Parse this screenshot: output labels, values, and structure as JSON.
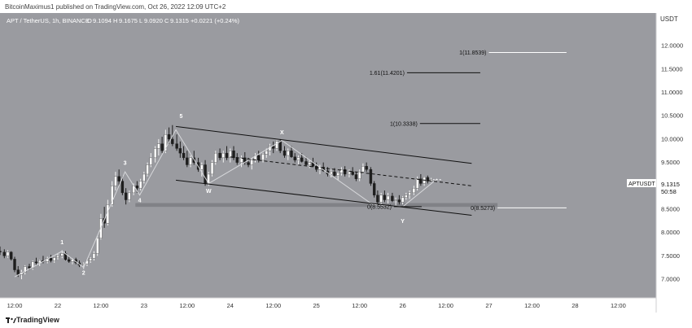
{
  "header": {
    "published_by": "BitcoinMaximus1 published on TradingView.com, Oct 26, 2022 12:09 UTC+2"
  },
  "footer": {
    "brand": "TradingView"
  },
  "colors": {
    "background": "#9a9ba0",
    "axis_bg": "#ffffff",
    "up": "#ffffff",
    "down": "#1e1e1e",
    "line": "#111111",
    "zone": "#7d7e83"
  },
  "chart_data": {
    "type": "candlestick",
    "symbol_line": {
      "symbol": "APT / TetherUS, 1h, BINANCE",
      "o_label": "O",
      "o": "9.1094",
      "h_label": "H",
      "h": "9.1675",
      "l_label": "L",
      "l": "9.0920",
      "c_label": "C",
      "c": "9.1315",
      "change": "+0.0221 (+0.24%)"
    },
    "y_axis": {
      "unit": "USDT",
      "ticks": [
        "7.0000",
        "7.5000",
        "8.0000",
        "8.5000",
        "9.0000",
        "9.5000",
        "10.0000",
        "10.5000",
        "11.0000",
        "11.5000",
        "12.0000"
      ],
      "range": [
        6.6,
        12.7
      ]
    },
    "x_axis": {
      "range_days": [
        21.33,
        28.94
      ],
      "ticks": [
        {
          "t": 21.5,
          "label": "12:00"
        },
        {
          "t": 22.0,
          "label": "22"
        },
        {
          "t": 22.5,
          "label": "12:00"
        },
        {
          "t": 23.0,
          "label": "23"
        },
        {
          "t": 23.5,
          "label": "12:00"
        },
        {
          "t": 24.0,
          "label": "24"
        },
        {
          "t": 24.5,
          "label": "12:00"
        },
        {
          "t": 25.0,
          "label": "25"
        },
        {
          "t": 25.5,
          "label": "12:00"
        },
        {
          "t": 26.0,
          "label": "26"
        },
        {
          "t": 26.5,
          "label": "12:00"
        },
        {
          "t": 27.0,
          "label": "27"
        },
        {
          "t": 27.5,
          "label": "12:00"
        },
        {
          "t": 28.0,
          "label": "28"
        },
        {
          "t": 28.5,
          "label": "12:00"
        }
      ]
    },
    "price_tag": {
      "symbol": "APTUSDT",
      "price": "9.1315",
      "countdown": "50:58",
      "value": 9.1315
    },
    "path_points": [
      [
        21.5,
        7.05
      ],
      [
        22.05,
        7.6
      ],
      [
        22.3,
        7.25
      ],
      [
        22.78,
        9.3
      ],
      [
        22.95,
        8.8
      ],
      [
        23.37,
        10.2
      ],
      [
        23.75,
        9.05
      ],
      [
        24.6,
        9.97
      ],
      [
        25.65,
        8.6
      ],
      [
        26.0,
        8.55
      ],
      [
        26.4,
        9.15
      ]
    ],
    "wave_labels": [
      {
        "text": "1",
        "t": 22.05,
        "p": 7.75
      },
      {
        "text": "2",
        "t": 22.3,
        "p": 7.1
      },
      {
        "text": "3",
        "t": 22.78,
        "p": 9.45
      },
      {
        "text": "4",
        "t": 22.95,
        "p": 8.65
      },
      {
        "text": "5",
        "t": 23.43,
        "p": 10.45
      },
      {
        "text": "W",
        "t": 23.75,
        "p": 8.85
      },
      {
        "text": "X",
        "t": 24.6,
        "p": 10.1
      },
      {
        "text": "Y",
        "t": 26.0,
        "p": 8.2
      }
    ],
    "channel_lines": [
      {
        "from": [
          23.37,
          10.27
        ],
        "to": [
          26.8,
          9.48
        ]
      },
      {
        "from": [
          23.37,
          9.12
        ],
        "to": [
          26.8,
          8.37
        ]
      }
    ],
    "dashed_midline": {
      "from": [
        24.0,
        9.62
      ],
      "to": [
        26.8,
        9.0
      ]
    },
    "support_zone": {
      "t_start": 22.9,
      "t_end": 27.1,
      "p_low": 8.55,
      "p_high": 8.63
    },
    "fib_levels": [
      {
        "label": "1(11.8539)",
        "value": 11.8539,
        "t_start": 27.0,
        "t_end": 27.9
      },
      {
        "label": "1.61(11.4201)",
        "value": 11.4201,
        "t_start": 26.05,
        "t_end": 26.9
      },
      {
        "label": "1(10.3338)",
        "value": 10.3338,
        "t_start": 26.2,
        "t_end": 26.9
      },
      {
        "label": "0(8.5532)",
        "value": 8.5532,
        "t_start": 25.9,
        "t_end": 26.22
      },
      {
        "label": "0(8.5273)",
        "value": 8.5273,
        "t_start": 27.1,
        "t_end": 27.9
      }
    ],
    "candles": [
      [
        21.33,
        7.6,
        7.7,
        7.52,
        7.58
      ],
      [
        21.38,
        7.58,
        7.64,
        7.45,
        7.5
      ],
      [
        21.42,
        7.5,
        7.62,
        7.46,
        7.58
      ],
      [
        21.46,
        7.58,
        7.6,
        7.4,
        7.43
      ],
      [
        21.5,
        7.43,
        7.48,
        7.15,
        7.2
      ],
      [
        21.54,
        7.2,
        7.28,
        7.05,
        7.1
      ],
      [
        21.58,
        7.1,
        7.2,
        7.0,
        7.15
      ],
      [
        21.62,
        7.15,
        7.3,
        7.1,
        7.27
      ],
      [
        21.67,
        7.27,
        7.33,
        7.2,
        7.24
      ],
      [
        21.71,
        7.24,
        7.4,
        7.2,
        7.37
      ],
      [
        21.75,
        7.37,
        7.46,
        7.3,
        7.35
      ],
      [
        21.79,
        7.35,
        7.42,
        7.28,
        7.4
      ],
      [
        21.83,
        7.4,
        7.5,
        7.34,
        7.38
      ],
      [
        21.88,
        7.38,
        7.48,
        7.34,
        7.45
      ],
      [
        21.92,
        7.45,
        7.52,
        7.36,
        7.4
      ],
      [
        21.96,
        7.4,
        7.48,
        7.35,
        7.46
      ],
      [
        22.0,
        7.46,
        7.55,
        7.42,
        7.5
      ],
      [
        22.05,
        7.5,
        7.62,
        7.45,
        7.55
      ],
      [
        22.09,
        7.55,
        7.6,
        7.4,
        7.42
      ],
      [
        22.13,
        7.42,
        7.48,
        7.35,
        7.38
      ],
      [
        22.17,
        7.38,
        7.45,
        7.32,
        7.42
      ],
      [
        22.21,
        7.42,
        7.46,
        7.32,
        7.35
      ],
      [
        22.25,
        7.35,
        7.4,
        7.26,
        7.3
      ],
      [
        22.3,
        7.3,
        7.36,
        7.22,
        7.33
      ],
      [
        22.34,
        7.33,
        7.42,
        7.28,
        7.4
      ],
      [
        22.38,
        7.4,
        7.47,
        7.35,
        7.45
      ],
      [
        22.42,
        7.45,
        7.6,
        7.4,
        7.55
      ],
      [
        22.46,
        7.55,
        7.92,
        7.5,
        7.88
      ],
      [
        22.5,
        7.88,
        8.4,
        7.85,
        8.3
      ],
      [
        22.54,
        8.3,
        8.55,
        8.1,
        8.2
      ],
      [
        22.58,
        8.2,
        8.7,
        8.15,
        8.6
      ],
      [
        22.63,
        8.6,
        9.1,
        8.55,
        9.0
      ],
      [
        22.67,
        9.0,
        9.3,
        8.9,
        9.2
      ],
      [
        22.71,
        9.2,
        9.35,
        9.0,
        9.1
      ],
      [
        22.75,
        9.1,
        9.2,
        8.8,
        8.85
      ],
      [
        22.79,
        8.85,
        8.95,
        8.6,
        8.7
      ],
      [
        22.83,
        8.7,
        8.9,
        8.65,
        8.85
      ],
      [
        22.88,
        8.85,
        9.05,
        8.8,
        9.0
      ],
      [
        22.92,
        9.0,
        9.1,
        8.85,
        8.95
      ],
      [
        22.96,
        8.95,
        9.15,
        8.9,
        9.1
      ],
      [
        23.0,
        9.1,
        9.3,
        9.05,
        9.25
      ],
      [
        23.04,
        9.25,
        9.5,
        9.2,
        9.45
      ],
      [
        23.08,
        9.45,
        9.7,
        9.4,
        9.6
      ],
      [
        23.13,
        9.6,
        9.85,
        9.5,
        9.8
      ],
      [
        23.17,
        9.8,
        10.0,
        9.65,
        9.9
      ],
      [
        23.21,
        9.9,
        10.05,
        9.7,
        9.75
      ],
      [
        23.25,
        9.75,
        10.2,
        9.7,
        10.1
      ],
      [
        23.29,
        10.1,
        10.25,
        9.9,
        10.0
      ],
      [
        23.33,
        10.0,
        10.3,
        9.85,
        9.9
      ],
      [
        23.38,
        9.9,
        10.1,
        9.75,
        9.8
      ],
      [
        23.42,
        9.8,
        9.95,
        9.6,
        9.7
      ],
      [
        23.46,
        9.7,
        9.85,
        9.55,
        9.6
      ],
      [
        23.5,
        9.6,
        9.75,
        9.4,
        9.45
      ],
      [
        23.54,
        9.45,
        9.65,
        9.4,
        9.6
      ],
      [
        23.58,
        9.6,
        9.75,
        9.45,
        9.5
      ],
      [
        23.63,
        9.5,
        9.6,
        9.3,
        9.35
      ],
      [
        23.67,
        9.35,
        9.5,
        9.2,
        9.45
      ],
      [
        23.71,
        9.45,
        9.55,
        9.0,
        9.05
      ],
      [
        23.75,
        9.05,
        9.3,
        9.0,
        9.25
      ],
      [
        23.79,
        9.25,
        9.55,
        9.2,
        9.5
      ],
      [
        23.83,
        9.5,
        9.75,
        9.45,
        9.7
      ],
      [
        23.88,
        9.7,
        9.8,
        9.55,
        9.6
      ],
      [
        23.92,
        9.6,
        9.75,
        9.5,
        9.7
      ],
      [
        23.96,
        9.7,
        9.85,
        9.55,
        9.6
      ],
      [
        24.0,
        9.6,
        9.8,
        9.5,
        9.75
      ],
      [
        24.04,
        9.75,
        9.85,
        9.55,
        9.6
      ],
      [
        24.08,
        9.6,
        9.7,
        9.45,
        9.5
      ],
      [
        24.13,
        9.5,
        9.65,
        9.4,
        9.6
      ],
      [
        24.17,
        9.6,
        9.72,
        9.45,
        9.5
      ],
      [
        24.21,
        9.5,
        9.6,
        9.4,
        9.45
      ],
      [
        24.25,
        9.45,
        9.58,
        9.35,
        9.55
      ],
      [
        24.29,
        9.55,
        9.7,
        9.5,
        9.65
      ],
      [
        24.33,
        9.65,
        9.75,
        9.5,
        9.55
      ],
      [
        24.38,
        9.55,
        9.7,
        9.5,
        9.68
      ],
      [
        24.42,
        9.68,
        9.8,
        9.6,
        9.75
      ],
      [
        24.46,
        9.75,
        9.9,
        9.65,
        9.85
      ],
      [
        24.5,
        9.85,
        9.95,
        9.7,
        9.8
      ],
      [
        24.54,
        9.8,
        9.98,
        9.75,
        9.95
      ],
      [
        24.58,
        9.95,
        10.0,
        9.7,
        9.75
      ],
      [
        24.63,
        9.75,
        9.85,
        9.6,
        9.65
      ],
      [
        24.67,
        9.65,
        9.8,
        9.55,
        9.75
      ],
      [
        24.71,
        9.75,
        9.85,
        9.6,
        9.62
      ],
      [
        24.75,
        9.62,
        9.7,
        9.5,
        9.55
      ],
      [
        24.79,
        9.55,
        9.65,
        9.45,
        9.6
      ],
      [
        24.83,
        9.6,
        9.7,
        9.5,
        9.52
      ],
      [
        24.88,
        9.52,
        9.62,
        9.42,
        9.45
      ],
      [
        24.92,
        9.45,
        9.55,
        9.38,
        9.5
      ],
      [
        24.96,
        9.5,
        9.6,
        9.4,
        9.42
      ],
      [
        25.0,
        9.42,
        9.5,
        9.3,
        9.35
      ],
      [
        25.04,
        9.35,
        9.45,
        9.25,
        9.4
      ],
      [
        25.08,
        9.4,
        9.5,
        9.3,
        9.32
      ],
      [
        25.13,
        9.32,
        9.4,
        9.2,
        9.25
      ],
      [
        25.17,
        9.25,
        9.35,
        9.18,
        9.3
      ],
      [
        25.21,
        9.3,
        9.38,
        9.2,
        9.22
      ],
      [
        25.25,
        9.22,
        9.3,
        9.12,
        9.28
      ],
      [
        25.29,
        9.28,
        9.4,
        9.22,
        9.35
      ],
      [
        25.33,
        9.35,
        9.42,
        9.2,
        9.25
      ],
      [
        25.38,
        9.25,
        9.35,
        9.18,
        9.3
      ],
      [
        25.42,
        9.3,
        9.4,
        9.22,
        9.24
      ],
      [
        25.46,
        9.24,
        9.3,
        9.1,
        9.15
      ],
      [
        25.5,
        9.15,
        9.35,
        9.1,
        9.3
      ],
      [
        25.54,
        9.3,
        9.48,
        9.25,
        9.42
      ],
      [
        25.58,
        9.42,
        9.5,
        9.3,
        9.35
      ],
      [
        25.63,
        9.35,
        9.4,
        9.0,
        9.05
      ],
      [
        25.67,
        9.05,
        9.1,
        8.75,
        8.8
      ],
      [
        25.71,
        8.8,
        8.9,
        8.6,
        8.65
      ],
      [
        25.75,
        8.65,
        8.85,
        8.58,
        8.8
      ],
      [
        25.79,
        8.8,
        8.9,
        8.65,
        8.7
      ],
      [
        25.83,
        8.7,
        8.85,
        8.62,
        8.78
      ],
      [
        25.88,
        8.78,
        8.85,
        8.65,
        8.68
      ],
      [
        25.92,
        8.68,
        8.75,
        8.58,
        8.7
      ],
      [
        25.96,
        8.7,
        8.8,
        8.6,
        8.65
      ],
      [
        26.0,
        8.65,
        8.78,
        8.6,
        8.75
      ],
      [
        26.04,
        8.75,
        8.85,
        8.7,
        8.8
      ],
      [
        26.08,
        8.8,
        8.9,
        8.72,
        8.85
      ],
      [
        26.13,
        8.85,
        9.0,
        8.8,
        8.95
      ],
      [
        26.17,
        8.95,
        9.2,
        8.9,
        9.15
      ],
      [
        26.21,
        9.15,
        9.25,
        9.0,
        9.05
      ],
      [
        26.25,
        9.05,
        9.2,
        9.0,
        9.18
      ],
      [
        26.29,
        9.18,
        9.22,
        9.05,
        9.1
      ],
      [
        26.33,
        9.1,
        9.17,
        9.09,
        9.13
      ]
    ]
  }
}
